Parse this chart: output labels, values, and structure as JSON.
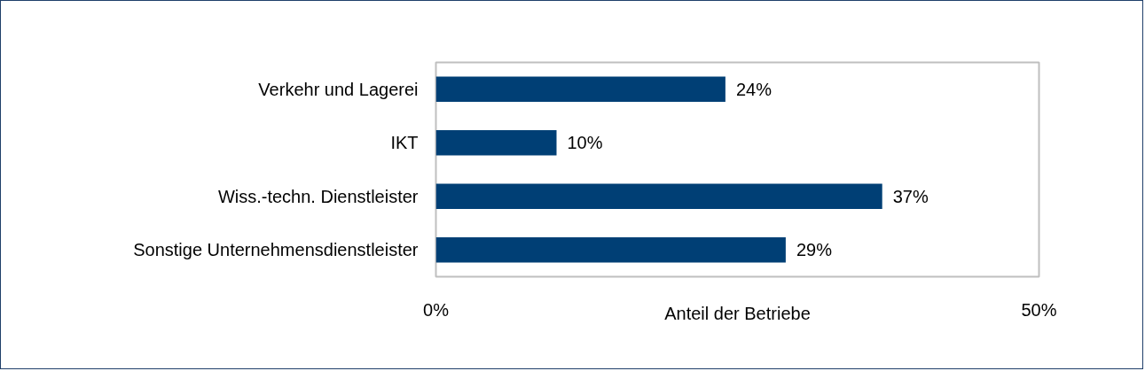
{
  "chart_data": {
    "type": "bar",
    "orientation": "horizontal",
    "xlabel": "Anteil der Betriebe",
    "categories": [
      "Verkehr und Lagerei",
      "IKT",
      "Wiss.-techn. Dienstleister",
      "Sonstige Unternehmensdienstleister"
    ],
    "series": [
      {
        "color": "#003f75",
        "values": [
          24,
          10,
          37,
          29
        ],
        "value_labels": [
          "24%",
          "10%",
          "37%",
          "29%"
        ]
      }
    ],
    "xlim": [
      0,
      50
    ],
    "xticks": [
      {
        "value": 0,
        "label": "0%"
      },
      {
        "value": 50,
        "label": "50%"
      }
    ],
    "grid": false
  }
}
